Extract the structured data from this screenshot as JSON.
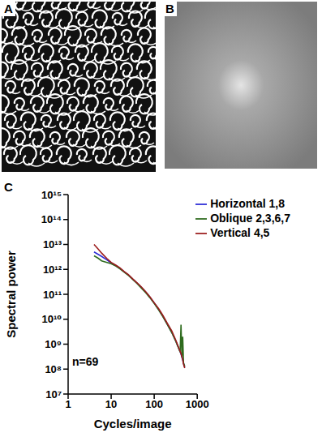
{
  "panel_labels": [
    "A",
    "B",
    "C"
  ],
  "chart_data": {
    "type": "line",
    "x_label": "Cycles/image",
    "y_label": "Spectral power",
    "log": true,
    "grid": false,
    "legend": "upper right",
    "xlim": [
      1,
      1000
    ],
    "xticks": [
      1,
      10,
      100,
      1000
    ],
    "ylim": [
      10000000,
      1000000000000000
    ],
    "yticks": [
      {
        "value": 10000000,
        "label": "10⁷"
      },
      {
        "value": 100000000,
        "label": "10⁸"
      },
      {
        "value": 1000000000,
        "label": "10⁹"
      },
      {
        "value": 10000000000,
        "label": "10¹⁰"
      },
      {
        "value": 100000000000,
        "label": "10¹¹"
      },
      {
        "value": 1000000000000,
        "label": "10¹²"
      },
      {
        "value": 10000000000000,
        "label": "10¹³"
      },
      {
        "value": 100000000000000,
        "label": "10¹⁴"
      },
      {
        "value": 1000000000000000,
        "label": "10¹⁵"
      }
    ],
    "annotations": [
      {
        "text": "n=69",
        "x": 2.5,
        "y": 200000000
      }
    ],
    "x": [
      4,
      5,
      6,
      8,
      10,
      13,
      16,
      20,
      25,
      32,
      40,
      50,
      64,
      80,
      100,
      128,
      160,
      200,
      256,
      320,
      400,
      420,
      440,
      460,
      480,
      512
    ],
    "series": [
      {
        "name": "Horizontal 1,8",
        "color": "#2b2bd6",
        "values": [
          5000000000000,
          4000000000000,
          3300000000000,
          2400000000000,
          1800000000000,
          1400000000000,
          1100000000000,
          800000000000,
          600000000000,
          400000000000,
          280000000000,
          190000000000,
          120000000000,
          75000000000,
          45000000000,
          24000000000,
          13000000000,
          6500000000,
          3000000000,
          1300000000,
          500000000,
          400000000,
          300000000,
          230000000,
          170000000,
          120000000
        ]
      },
      {
        "name": "Oblique 2,3,6,7",
        "color": "#2e6b1e",
        "values": [
          3500000000000,
          2800000000000,
          2200000000000,
          1900000000000,
          1700000000000,
          1350000000000,
          1050000000000,
          780000000000,
          580000000000,
          390000000000,
          270000000000,
          180000000000,
          115000000000,
          72000000000,
          43000000000,
          23000000000,
          12500000000,
          6300000000,
          2900000000,
          1250000000,
          480000000,
          6000000000,
          320000000,
          2000000000,
          180000000,
          130000000
        ]
      },
      {
        "name": "Vertical 4,5",
        "color": "#9b1c1c",
        "values": [
          10000000000000,
          6500000000000,
          4500000000000,
          2700000000000,
          1900000000000,
          1450000000000,
          1150000000000,
          820000000000,
          620000000000,
          410000000000,
          290000000000,
          200000000000,
          125000000000,
          78000000000,
          46000000000,
          26000000000,
          14000000000,
          7000000000,
          3400000000,
          1400000000,
          520000000,
          420000000,
          310000000,
          240000000,
          160000000,
          110000000
        ]
      }
    ]
  }
}
